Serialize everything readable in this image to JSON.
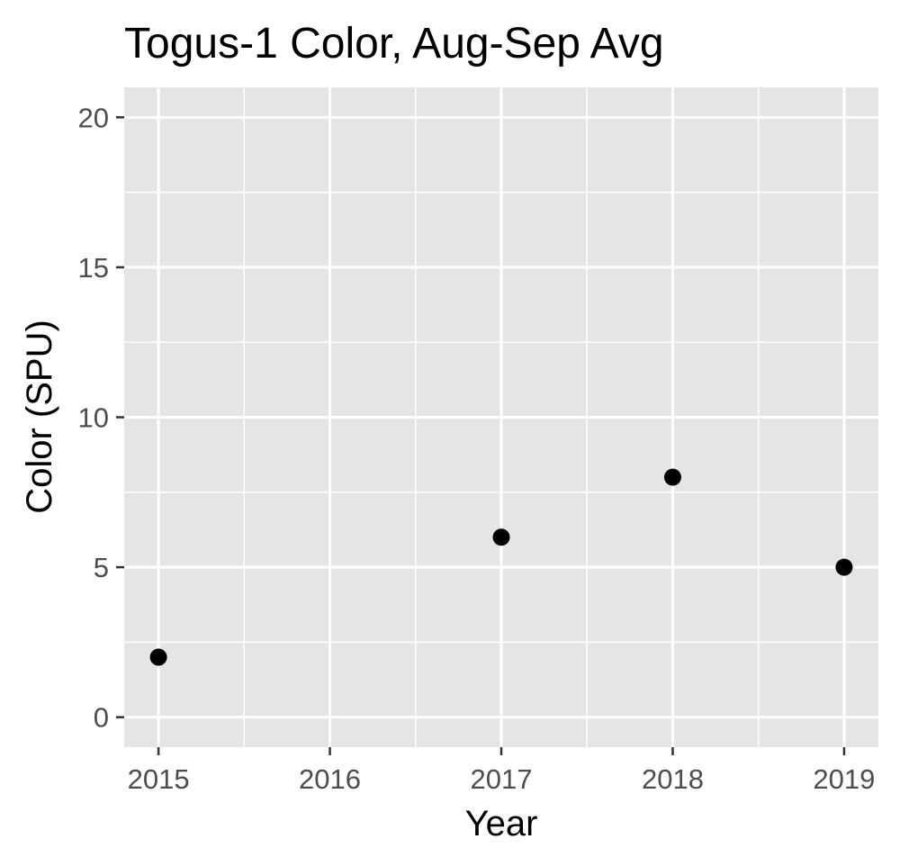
{
  "chart_data": {
    "type": "scatter",
    "title": "Togus-1 Color, Aug-Sep Avg",
    "xlabel": "Year",
    "ylabel": "Color (SPU)",
    "x": [
      2015,
      2017,
      2018,
      2019
    ],
    "y": [
      2,
      6,
      8,
      5
    ],
    "xticks": [
      2015,
      2016,
      2017,
      2018,
      2019
    ],
    "yticks": [
      0,
      5,
      10,
      15,
      20
    ],
    "xlim": [
      2014.8,
      2019.2
    ],
    "ylim": [
      -1,
      21
    ],
    "grid": true,
    "colors": {
      "panel": "#e5e5e5",
      "grid": "#ffffff",
      "point": "#000000",
      "tick_text": "#4d4d4d",
      "tick_mark": "#333333"
    }
  }
}
